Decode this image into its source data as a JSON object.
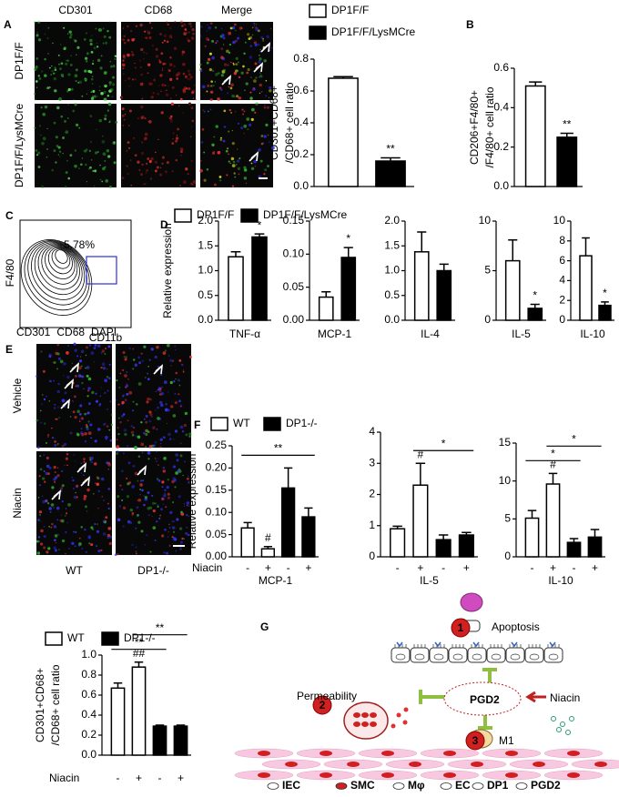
{
  "panel_letters": [
    "A",
    "B",
    "C",
    "D",
    "E",
    "F",
    "G"
  ],
  "panel_a": {
    "columns": [
      {
        "text": "CD301",
        "color": "#22b822"
      },
      {
        "text": "CD68",
        "color": "#e0262a"
      },
      {
        "text": "Merge",
        "color": "#000000"
      }
    ],
    "rows": [
      "DP1F/F",
      "DP1F/F/LysMCre"
    ]
  },
  "panel_c": {
    "y_label": "F4/80",
    "x_label": "CD11b",
    "gate_label": "5.78%"
  },
  "panel_e": {
    "stains": [
      {
        "text": "CD301",
        "color": "#22b822"
      },
      {
        "text": "CD68",
        "color": "#e0262a"
      },
      {
        "text": "DAPI",
        "color": "#2a2ae0"
      }
    ],
    "rows": [
      "Vehicle",
      "Niacin"
    ],
    "columns": [
      "WT",
      "DP1-/-"
    ]
  },
  "panel_g": {
    "apoptosis": "Apoptosis",
    "permeability": "Permeability",
    "pgd2": "PGD2",
    "niacin": "Niacin",
    "m1": "M1",
    "steps": [
      "1",
      "2",
      "3"
    ],
    "key": [
      "IEC",
      "SMC",
      "Mφ",
      "EC",
      "DP1",
      "PGD2"
    ]
  },
  "legends": [
    {
      "entries": [
        {
          "name": "DP1F/F",
          "color": "#ffffff"
        },
        {
          "name": "DP1F/F/LysMCre",
          "color": "#000000"
        }
      ]
    },
    {
      "entries": [
        {
          "name": "DP1F/F",
          "color": "#ffffff"
        },
        {
          "name": "DP1F/F/LysMCre",
          "color": "#000000"
        }
      ]
    },
    {
      "entries": [
        {
          "name": "WT",
          "color": "#ffffff"
        },
        {
          "name": "DP1-/-",
          "color": "#000000"
        }
      ]
    },
    {
      "entries": [
        {
          "name": "WT",
          "color": "#ffffff"
        },
        {
          "name": "DP1-/-",
          "color": "#000000"
        }
      ]
    }
  ],
  "chart_data": [
    {
      "type": "bar",
      "ylabel": [
        "CD301+CD68+",
        "/CD68+ cell ratio"
      ],
      "values": [
        0.68,
        0.16
      ],
      "errors": [
        0.01,
        0.02
      ],
      "colors": [
        "#ffffff",
        "#000000"
      ],
      "ylim": [
        0,
        0.8
      ],
      "yticks": [
        {
          "value": 0,
          "label": "0.0"
        },
        0.2,
        0.4,
        0.6,
        0.8
      ],
      "marks": [
        null,
        "**"
      ]
    },
    {
      "type": "bar",
      "ylabel": [
        "CD206+F4/80+",
        "/F4/80+ cell ratio"
      ],
      "values": [
        0.51,
        0.25
      ],
      "errors": [
        0.02,
        0.02
      ],
      "colors": [
        "#ffffff",
        "#000000"
      ],
      "ylim": [
        0,
        0.6
      ],
      "yticks": [
        {
          "value": 0,
          "label": "0.0"
        },
        0.2,
        0.4,
        0.6
      ],
      "marks": [
        null,
        "**"
      ]
    },
    {
      "type": "bar",
      "ylabel": [
        "Relative expression"
      ],
      "xlabel": "TNF-α",
      "values": [
        1.28,
        1.68
      ],
      "errors": [
        0.1,
        0.06
      ],
      "colors": [
        "#ffffff",
        "#000000"
      ],
      "ylim": [
        0,
        2
      ],
      "yticks": [
        {
          "value": 0,
          "label": "0.0"
        },
        0.5,
        {
          "value": 1,
          "label": "1.0"
        },
        1.5,
        {
          "value": 2,
          "label": "2.0"
        }
      ],
      "marks": [
        null,
        "*"
      ]
    },
    {
      "type": "bar",
      "xlabel": "MCP-1",
      "values": [
        0.035,
        0.095
      ],
      "errors": [
        0.008,
        0.015
      ],
      "colors": [
        "#ffffff",
        "#000000"
      ],
      "ylim": [
        0,
        0.15
      ],
      "yticks": [
        {
          "value": 0,
          "label": "0.00"
        },
        0.05,
        {
          "value": 0.1,
          "label": "0.10"
        },
        0.15
      ],
      "marks": [
        null,
        "*"
      ]
    },
    {
      "type": "bar",
      "xlabel": "IL-4",
      "values": [
        1.38,
        1.0
      ],
      "errors": [
        0.4,
        0.13
      ],
      "colors": [
        "#ffffff",
        "#000000"
      ],
      "ylim": [
        0,
        2
      ],
      "yticks": [
        {
          "value": 0,
          "label": "0.0"
        },
        0.5,
        {
          "value": 1,
          "label": "1.0"
        },
        1.5,
        {
          "value": 2,
          "label": "2.0"
        }
      ]
    },
    {
      "type": "bar",
      "xlabel": "IL-5",
      "values": [
        6.0,
        1.2
      ],
      "errors": [
        2.1,
        0.4
      ],
      "colors": [
        "#ffffff",
        "#000000"
      ],
      "ylim": [
        0,
        10
      ],
      "yticks": [
        0,
        5,
        10
      ],
      "marks": [
        null,
        "*"
      ]
    },
    {
      "type": "bar",
      "xlabel": "IL-10",
      "values": [
        6.5,
        1.5
      ],
      "errors": [
        1.8,
        0.35
      ],
      "colors": [
        "#ffffff",
        "#000000"
      ],
      "ylim": [
        0,
        10
      ],
      "yticks": [
        0,
        2,
        4,
        6,
        8,
        10
      ],
      "marks": [
        null,
        "*"
      ]
    },
    {
      "type": "bar",
      "ylabel": [
        "Relative expression"
      ],
      "xlabel": "MCP-1",
      "category_title": "Niacin",
      "categories": [
        "-",
        "+",
        "-",
        "+"
      ],
      "values": [
        0.065,
        0.018,
        0.155,
        0.09
      ],
      "errors": [
        0.012,
        0.005,
        0.045,
        0.02
      ],
      "colors": [
        "#ffffff",
        "#ffffff",
        "#000000",
        "#000000"
      ],
      "ylim": [
        0,
        0.25
      ],
      "yticks": [
        {
          "value": 0,
          "label": "0.00"
        },
        0.05,
        {
          "value": 0.1,
          "label": "0.10"
        },
        0.15,
        {
          "value": 0.2,
          "label": "0.20"
        },
        0.25
      ],
      "marks": [
        null,
        "#",
        null,
        null
      ],
      "comparisons": [
        {
          "label": "**",
          "bars": [
            0,
            3
          ]
        }
      ]
    },
    {
      "type": "bar",
      "xlabel": "IL-5",
      "categories": [
        "-",
        "+",
        "-",
        "+"
      ],
      "values": [
        0.9,
        2.3,
        0.55,
        0.7
      ],
      "errors": [
        0.08,
        0.7,
        0.15,
        0.08
      ],
      "colors": [
        "#ffffff",
        "#ffffff",
        "#000000",
        "#000000"
      ],
      "ylim": [
        0,
        4
      ],
      "yticks": [
        0,
        1,
        2,
        3,
        4
      ],
      "marks": [
        null,
        "#",
        null,
        null
      ],
      "comparisons": [
        {
          "label": "*",
          "bars": [
            1,
            3
          ]
        }
      ]
    },
    {
      "type": "bar",
      "xlabel": "IL-10",
      "categories": [
        "-",
        "+",
        "-",
        "+"
      ],
      "values": [
        5.1,
        9.6,
        1.9,
        2.6
      ],
      "errors": [
        1.0,
        1.4,
        0.5,
        1.0
      ],
      "colors": [
        "#ffffff",
        "#ffffff",
        "#000000",
        "#000000"
      ],
      "ylim": [
        0,
        15
      ],
      "yticks": [
        0,
        5,
        10,
        15
      ],
      "marks": [
        null,
        "#",
        null,
        null
      ],
      "comparisons": [
        {
          "label": "*",
          "bars": [
            0,
            2
          ]
        },
        {
          "label": "*",
          "bars": [
            1,
            3
          ]
        }
      ]
    },
    {
      "type": "bar",
      "ylabel": [
        "CD301+CD68+",
        "/CD68+ cell ratio"
      ],
      "category_title": "Niacin",
      "categories": [
        "-",
        "+",
        "-",
        "+"
      ],
      "values": [
        0.67,
        0.88,
        0.29,
        0.29
      ],
      "errors": [
        0.05,
        0.05,
        0.01,
        0.01
      ],
      "colors": [
        "#ffffff",
        "#ffffff",
        "#000000",
        "#000000"
      ],
      "ylim": [
        0,
        1
      ],
      "yticks": [
        {
          "value": 0,
          "label": "0.0"
        },
        0.2,
        0.4,
        0.6,
        0.8,
        {
          "value": 1,
          "label": "1.0"
        }
      ],
      "marks": [
        null,
        "##",
        null,
        null
      ],
      "comparisons": [
        {
          "label": "**",
          "bars": [
            0,
            2
          ]
        },
        {
          "label": "**",
          "bars": [
            1,
            3
          ]
        }
      ]
    }
  ]
}
